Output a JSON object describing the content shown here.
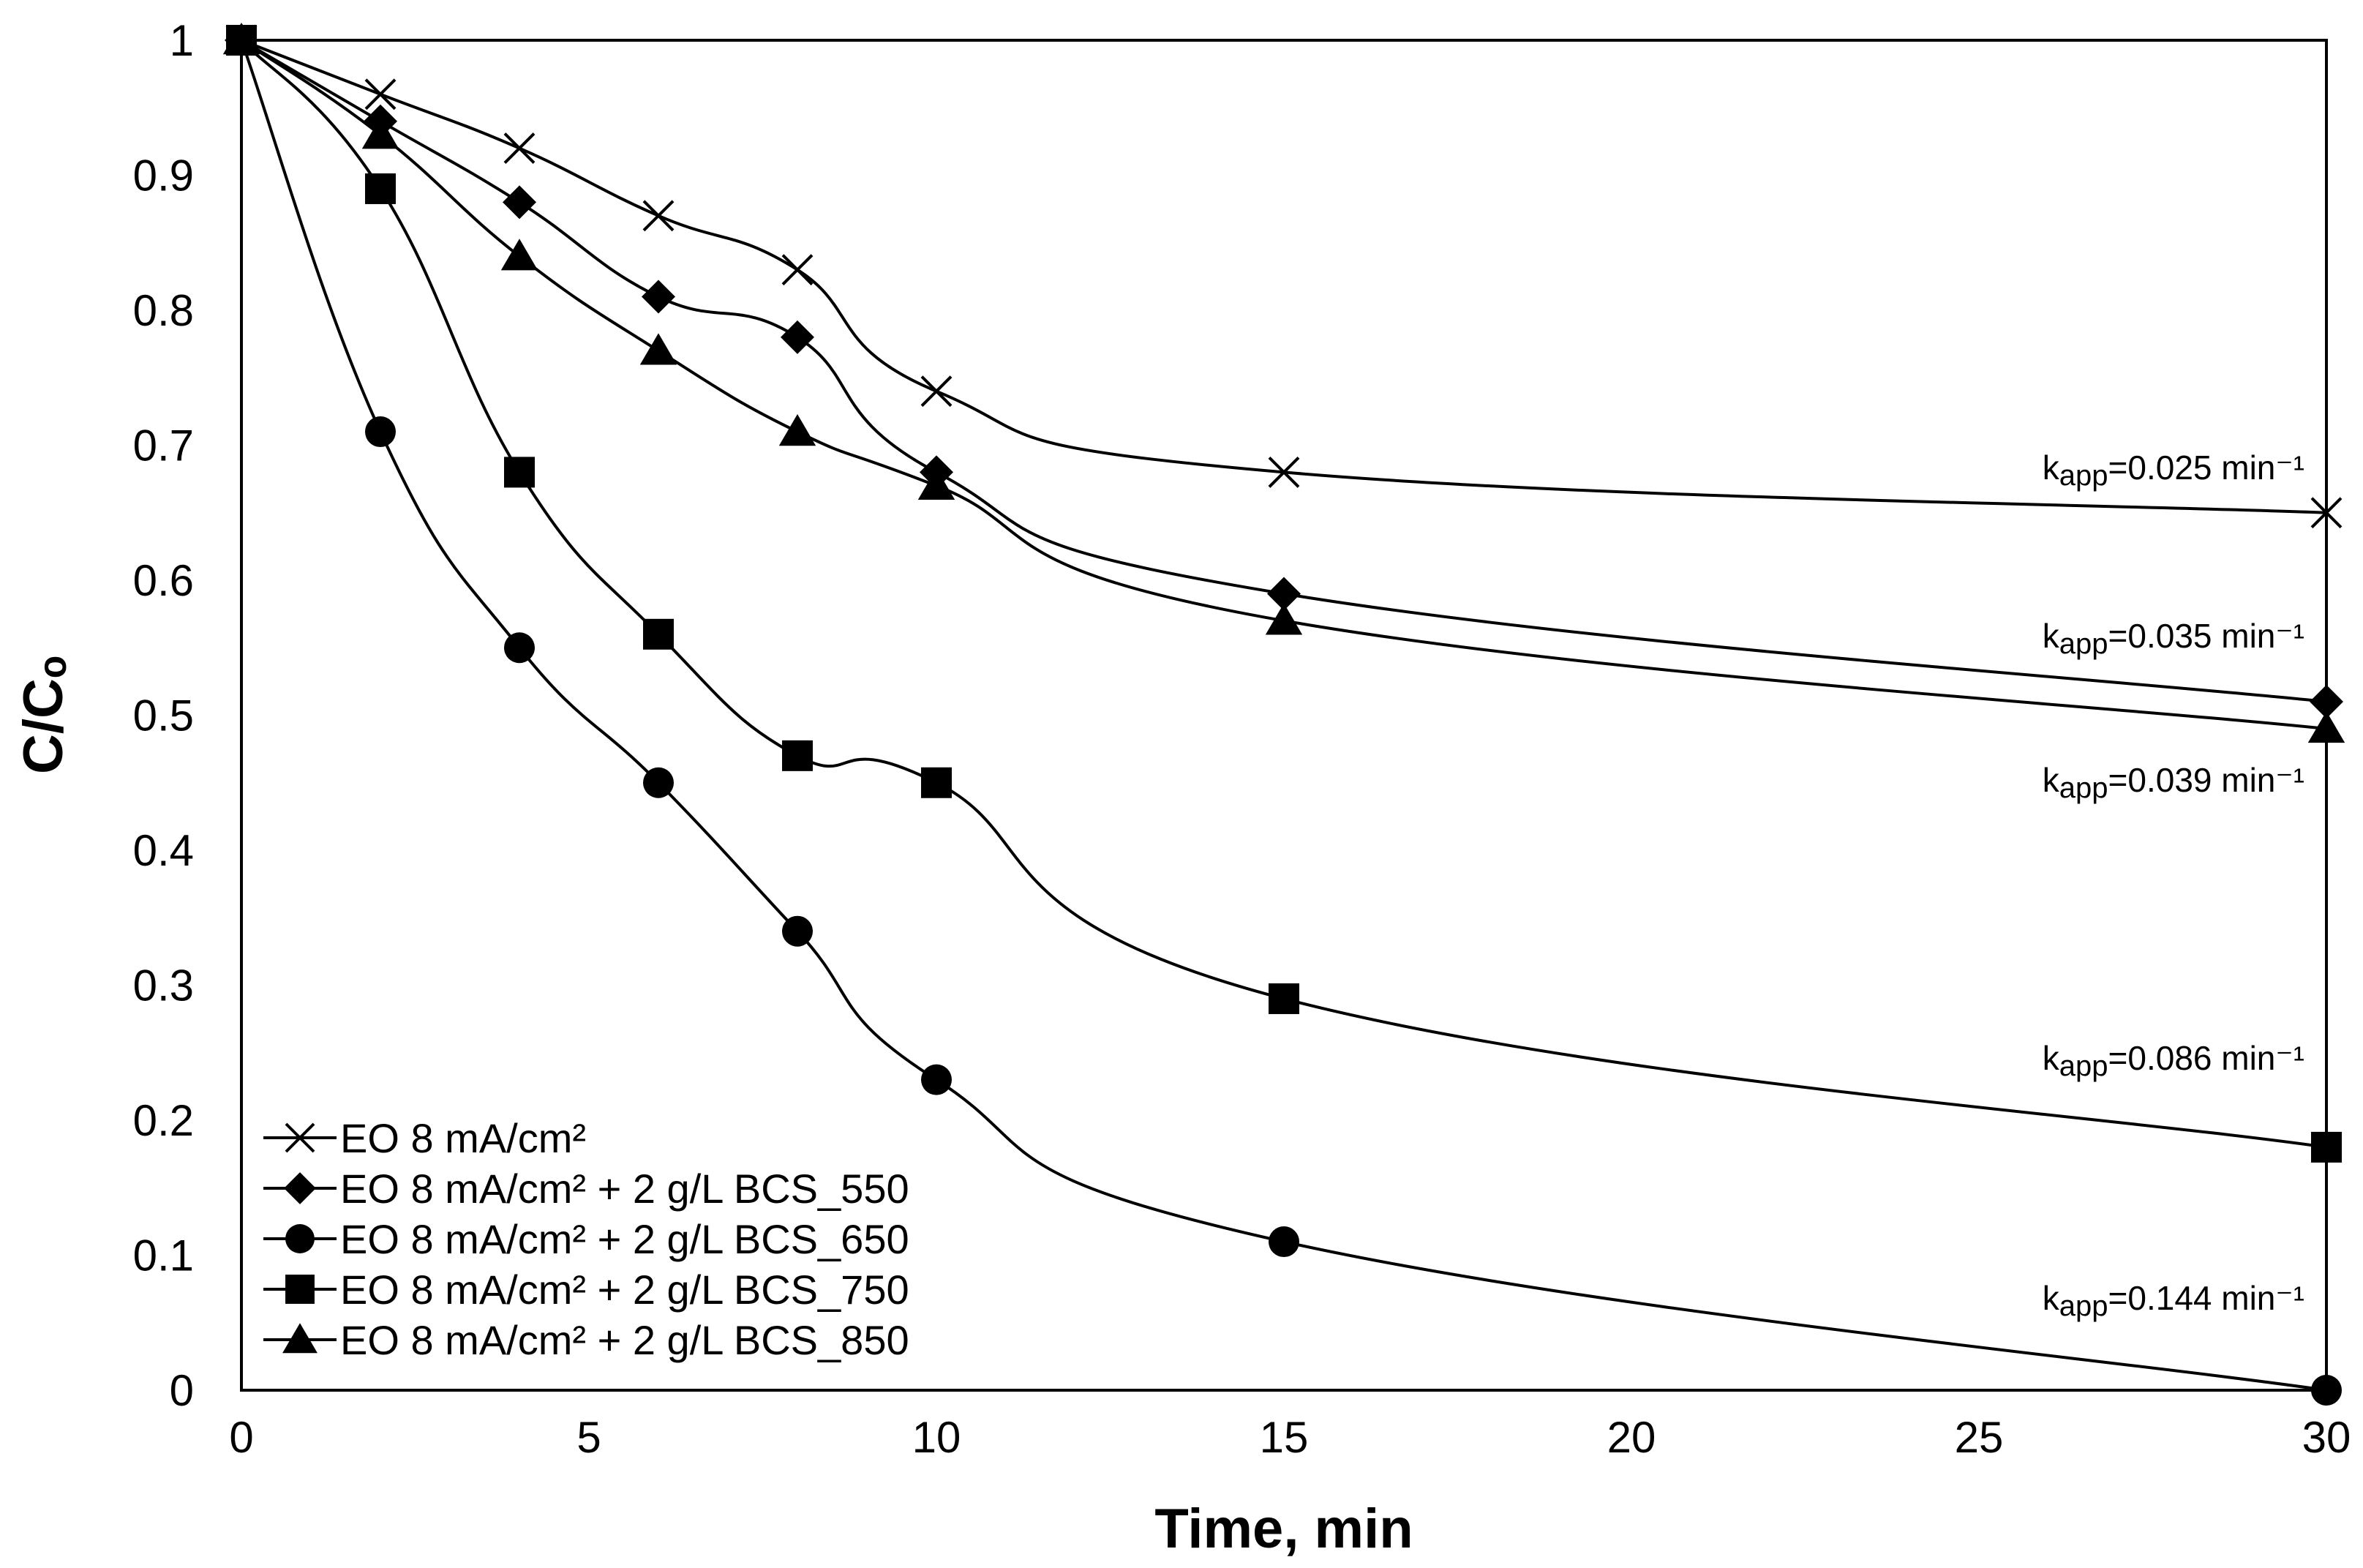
{
  "chart_data": {
    "type": "line",
    "title": "",
    "xlabel": "Time, min",
    "ylabel": "C/Cₒ",
    "xlim": [
      0,
      30
    ],
    "ylim": [
      0,
      1
    ],
    "x_tick_labels": [
      "0",
      "5",
      "10",
      "15",
      "20",
      "25",
      "30"
    ],
    "y_tick_labels": [
      "0",
      "0.1",
      "0.2",
      "0.3",
      "0.4",
      "0.5",
      "0.6",
      "0.7",
      "0.8",
      "0.9",
      "1"
    ],
    "grid": false,
    "legend_position": "bottom-left",
    "series": [
      {
        "name": "EO 8 mA/cm² ",
        "marker": "x",
        "x": [
          0,
          2,
          4,
          6,
          8,
          10,
          15,
          30
        ],
        "y": [
          1.0,
          0.96,
          0.92,
          0.87,
          0.83,
          0.74,
          0.68,
          0.65
        ],
        "annotation": {
          "k": "k",
          "sub": "app",
          "rest": "=0.025 min⁻¹"
        }
      },
      {
        "name": "EO 8 mA/cm² + 2  g/L BCS_550",
        "marker": "diamond",
        "x": [
          0,
          2,
          4,
          6,
          8,
          10,
          15,
          30
        ],
        "y": [
          1.0,
          0.94,
          0.88,
          0.81,
          0.78,
          0.68,
          0.59,
          0.51
        ],
        "annotation": {
          "k": "k",
          "sub": "app",
          "rest": "=0.035 min⁻¹"
        }
      },
      {
        "name": "EO 8 mA/cm² + 2  g/L BCS_650",
        "marker": "circle",
        "x": [
          0,
          2,
          4,
          6,
          8,
          10,
          15,
          30
        ],
        "y": [
          1.0,
          0.71,
          0.55,
          0.45,
          0.34,
          0.23,
          0.11,
          0.0
        ],
        "annotation": {
          "k": "k",
          "sub": "app",
          "rest": "=0.144 min⁻¹"
        }
      },
      {
        "name": "EO 8 mA/cm² + 2  g/L BCS_750",
        "marker": "square",
        "x": [
          0,
          2,
          4,
          6,
          8,
          10,
          15,
          30
        ],
        "y": [
          1.0,
          0.89,
          0.68,
          0.56,
          0.47,
          0.45,
          0.29,
          0.18
        ],
        "annotation": {
          "k": "k",
          "sub": "app",
          "rest": "=0.086 min⁻¹"
        }
      },
      {
        "name": "EO 8 mA/cm² + 2  g/L BCS_850",
        "marker": "triangle",
        "x": [
          0,
          2,
          4,
          6,
          8,
          10,
          15,
          30
        ],
        "y": [
          1.0,
          0.93,
          0.84,
          0.77,
          0.71,
          0.67,
          0.57,
          0.49
        ],
        "annotation": {
          "k": "k",
          "sub": "app",
          "rest": "=0.039 min⁻¹"
        }
      }
    ]
  }
}
